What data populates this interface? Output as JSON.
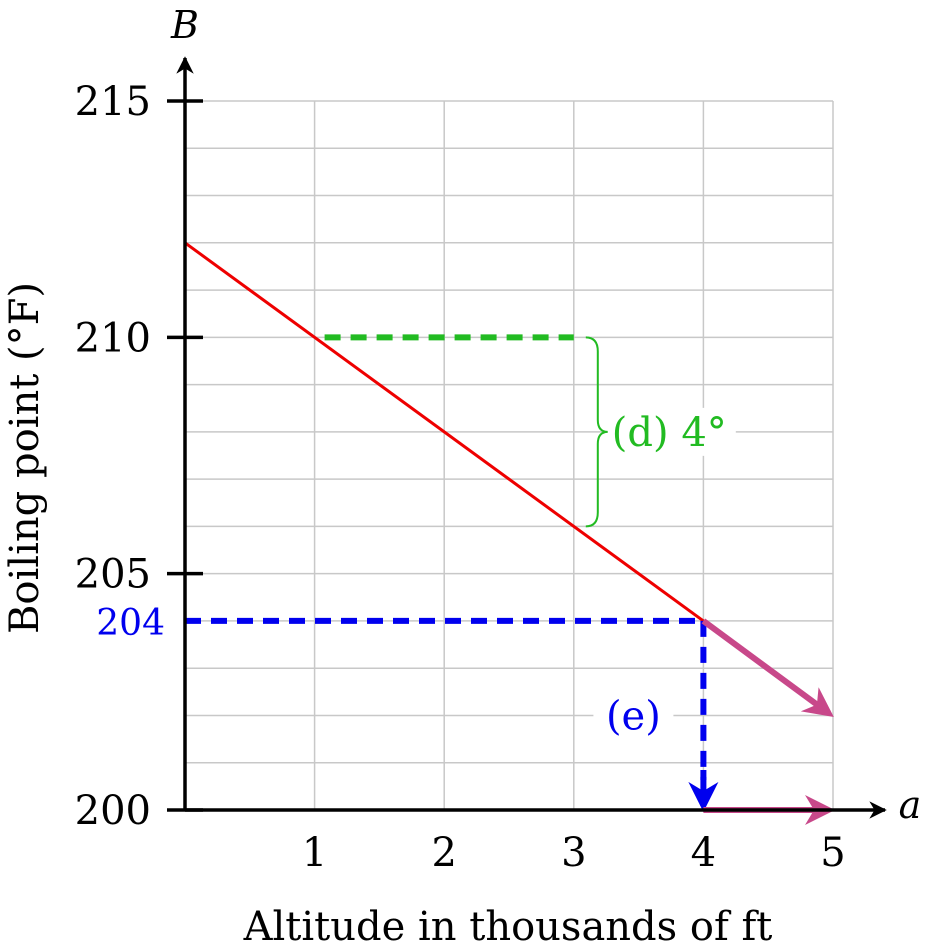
{
  "chart_data": {
    "type": "line",
    "xlabel": "Altitude in thousands of ft",
    "ylabel": "Boiling point (°F)",
    "x_axis_var": "a",
    "y_axis_var": "B",
    "xlim": [
      0,
      5
    ],
    "ylim": [
      200,
      215
    ],
    "x_ticks": [
      1,
      2,
      3,
      4,
      5
    ],
    "x_tick_labels": [
      "1",
      "2",
      "3",
      "4",
      "5"
    ],
    "y_ticks": [
      200,
      205,
      210,
      215
    ],
    "y_tick_labels": [
      "200",
      "205",
      "210",
      "215"
    ],
    "grid": true,
    "y_minor_step": 1,
    "series": [
      {
        "x": [
          0,
          4
        ],
        "y": [
          212,
          204
        ],
        "color": "#ee0000"
      }
    ],
    "extrapolation": {
      "color": "#c8488a",
      "sloped": {
        "x": [
          4,
          5
        ],
        "y": [
          204,
          202
        ]
      },
      "baseline": {
        "x": [
          4,
          5
        ],
        "y": [
          200,
          200
        ]
      }
    },
    "annotations": {
      "d": {
        "label": "(d) 4°",
        "color": "#22bb22",
        "x_from": 1,
        "x_to": 3,
        "y_top": 210,
        "y_bottom": 206
      },
      "e": {
        "label": "(e)",
        "value_label": "204",
        "color": "#0000ee",
        "x": 4,
        "y": 204,
        "label_y": 202
      }
    }
  }
}
